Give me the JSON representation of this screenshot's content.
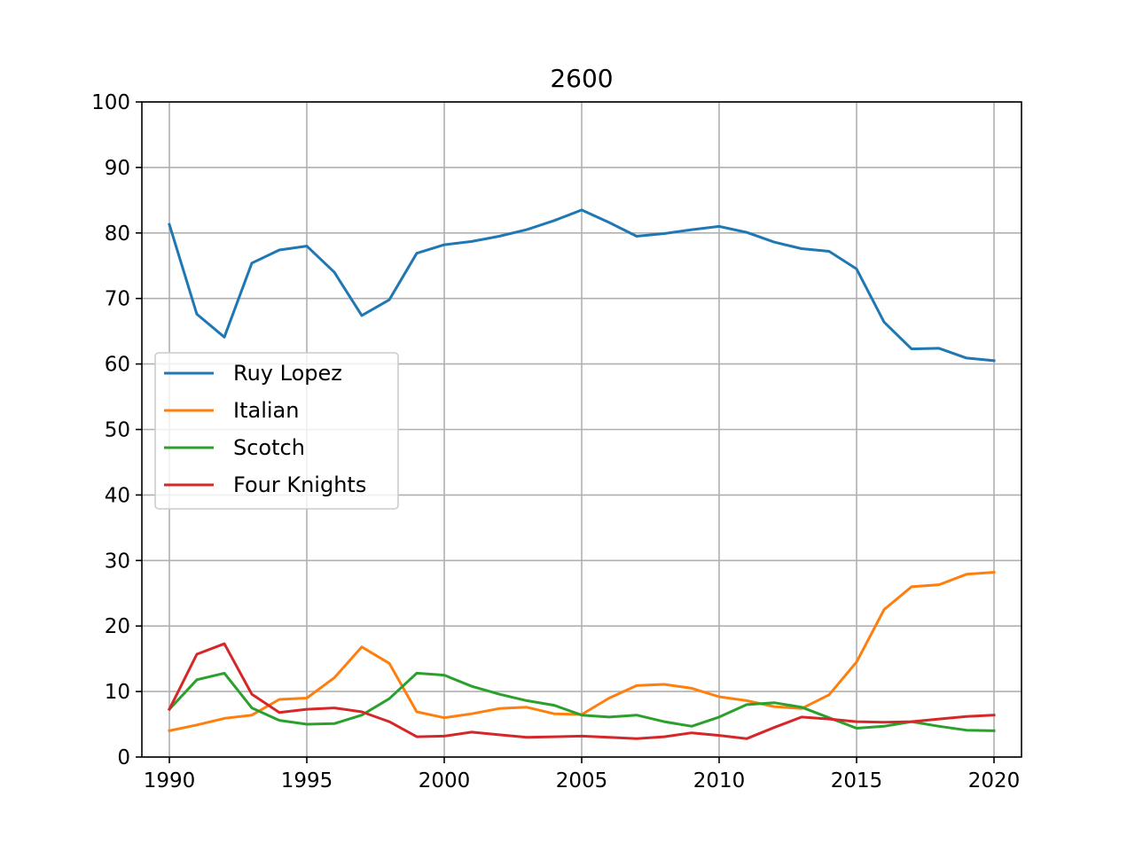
{
  "chart_data": {
    "type": "line",
    "title": "2600",
    "xlabel": "",
    "ylabel": "",
    "xlim": [
      1989,
      2021
    ],
    "ylim": [
      0,
      100
    ],
    "xticks": [
      "1990",
      "1995",
      "2000",
      "2005",
      "2010",
      "2015",
      "2020"
    ],
    "yticks": [
      "0",
      "10",
      "20",
      "30",
      "40",
      "50",
      "60",
      "70",
      "80",
      "90",
      "100"
    ],
    "grid": true,
    "legend_position": "center-left",
    "x": [
      1990,
      1991,
      1992,
      1993,
      1994,
      1995,
      1996,
      1997,
      1998,
      1999,
      2000,
      2001,
      2002,
      2003,
      2004,
      2005,
      2006,
      2007,
      2008,
      2009,
      2010,
      2011,
      2012,
      2013,
      2014,
      2015,
      2016,
      2017,
      2018,
      2019,
      2020
    ],
    "series": [
      {
        "name": "Ruy Lopez",
        "color": "#1f77b4",
        "values": [
          81.3,
          67.6,
          64.1,
          75.4,
          77.4,
          78.0,
          74.0,
          67.4,
          69.8,
          76.9,
          78.2,
          78.7,
          79.5,
          80.5,
          81.9,
          83.5,
          81.6,
          79.5,
          79.9,
          80.5,
          81.0,
          80.1,
          78.6,
          77.6,
          77.2,
          74.5,
          66.4,
          62.3,
          62.4,
          60.9,
          60.5
        ]
      },
      {
        "name": "Italian",
        "color": "#ff7f0e",
        "values": [
          4.0,
          4.9,
          5.9,
          6.4,
          8.8,
          9.0,
          12.1,
          16.8,
          14.3,
          6.9,
          6.0,
          6.6,
          7.4,
          7.6,
          6.6,
          6.5,
          9.0,
          10.9,
          11.1,
          10.5,
          9.2,
          8.6,
          7.7,
          7.4,
          9.5,
          14.5,
          22.5,
          26.0,
          26.3,
          27.9,
          28.2
        ]
      },
      {
        "name": "Scotch",
        "color": "#2ca02c",
        "values": [
          7.3,
          11.8,
          12.8,
          7.5,
          5.6,
          5.0,
          5.1,
          6.4,
          8.9,
          12.8,
          12.5,
          10.8,
          9.6,
          8.6,
          7.9,
          6.4,
          6.1,
          6.4,
          5.4,
          4.7,
          6.1,
          8.0,
          8.3,
          7.6,
          6.0,
          4.4,
          4.7,
          5.4,
          4.7,
          4.1,
          4.0
        ]
      },
      {
        "name": "Four Knights",
        "color": "#d62728",
        "values": [
          7.3,
          15.7,
          17.3,
          9.6,
          6.8,
          7.3,
          7.5,
          6.9,
          5.4,
          3.1,
          3.2,
          3.8,
          3.4,
          3.0,
          3.1,
          3.2,
          3.0,
          2.8,
          3.1,
          3.7,
          3.3,
          2.8,
          4.5,
          6.1,
          5.8,
          5.4,
          5.3,
          5.4,
          5.8,
          6.2,
          6.4
        ]
      }
    ]
  }
}
